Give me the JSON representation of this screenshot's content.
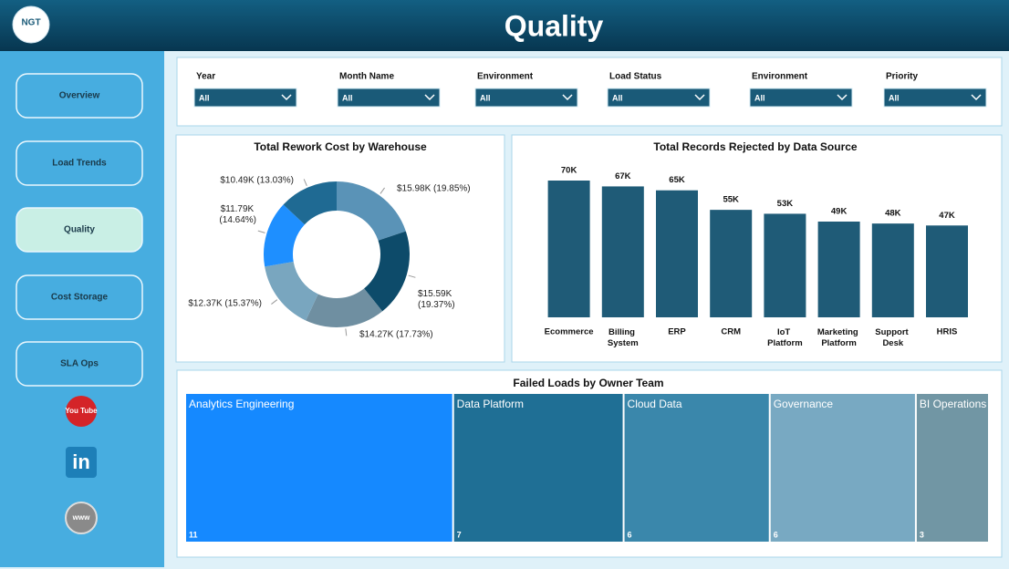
{
  "header": {
    "title": "Quality",
    "logo": "NGT"
  },
  "nav": {
    "items": [
      "Overview",
      "Load Trends",
      "Quality",
      "Cost Storage",
      "SLA Ops"
    ],
    "active": 2
  },
  "icons": [
    "You Tube",
    "in",
    "www"
  ],
  "filters": {
    "labels": [
      "Year",
      "Month Name",
      "Environment",
      "Load Status",
      "Environment",
      "Priority"
    ],
    "values": [
      "All",
      "All",
      "All",
      "All",
      "All",
      "All"
    ]
  },
  "chart_data": [
    {
      "type": "donut",
      "title": "Total Rework Cost by Warehouse",
      "values": [
        15980,
        15590,
        14270,
        12370,
        11790,
        10490
      ],
      "value_labels": [
        "$15.98K (19.85%)",
        "$15.59K (19.37%)",
        "$14.27K (17.73%)",
        "$12.37K (15.37%)",
        "$11.79K (14.64%)",
        "$10.49K (13.03%)"
      ],
      "colors": [
        "#5a93b7",
        "#0d4b6a",
        "#6f8fa1",
        "#79a6bf",
        "#1e8fff",
        "#1f6a93"
      ]
    },
    {
      "type": "bar",
      "title": "Total Records Rejected by Data Source",
      "categories": [
        "Ecommerce",
        "Billing System",
        "ERP",
        "CRM",
        "IoT Platform",
        "Marketing Platform",
        "Support Desk",
        "HRIS"
      ],
      "values": [
        70000,
        67000,
        65000,
        55000,
        53000,
        49000,
        48000,
        47000
      ],
      "value_labels": [
        "70K",
        "67K",
        "65K",
        "55K",
        "53K",
        "49K",
        "48K",
        "47K"
      ],
      "color": "#1f5b77"
    },
    {
      "type": "treemap",
      "title": "Failed Loads by Owner Team",
      "categories": [
        "Analytics Engineering",
        "Data Platform",
        "Cloud Data",
        "Governance",
        "BI Operations"
      ],
      "values": [
        11,
        7,
        6,
        6,
        3
      ],
      "colors": [
        "#1589ff",
        "#1f6f95",
        "#3a87ab",
        "#78a9c2",
        "#7196a4"
      ]
    }
  ]
}
